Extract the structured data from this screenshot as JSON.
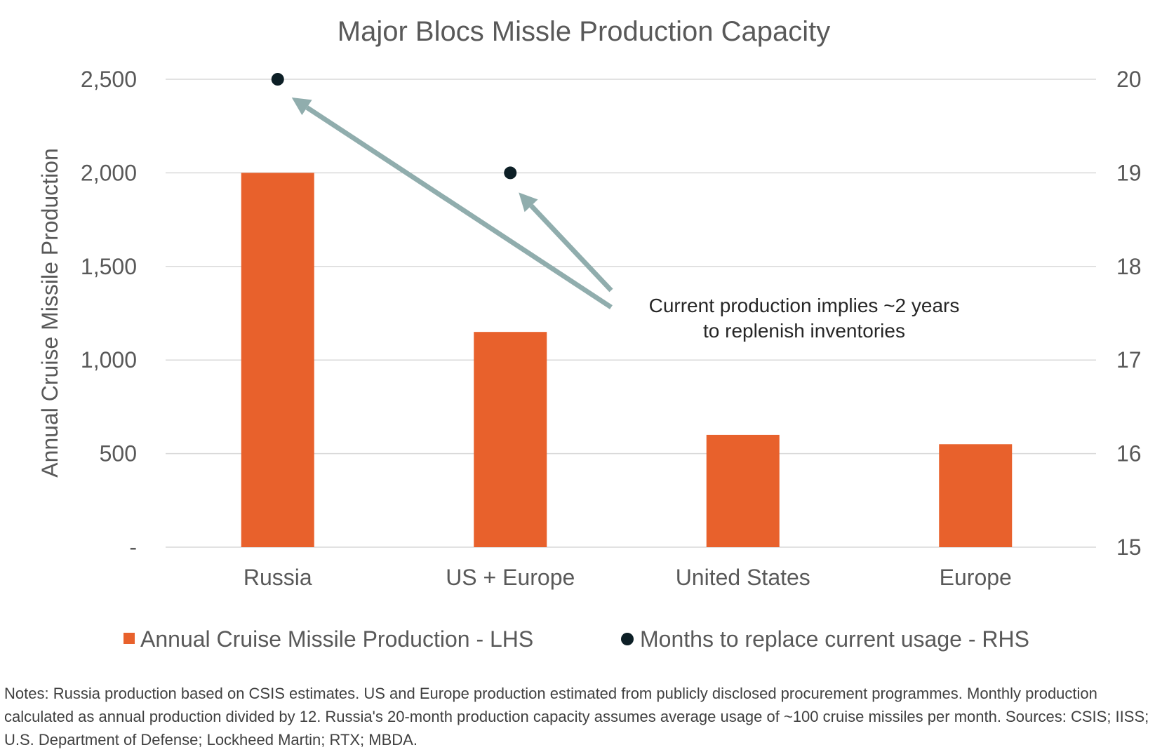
{
  "chart_data": {
    "type": "bar",
    "title": "Major Blocs Missle Production Capacity",
    "categories": [
      "Russia",
      "US + Europe",
      "United States",
      "Europe"
    ],
    "series": [
      {
        "name": "Annual Cruise Missile Production - LHS",
        "axis": "left",
        "kind": "bar",
        "values": [
          2000,
          1150,
          600,
          550
        ],
        "color": "#e8612c"
      },
      {
        "name": "Months to replace current usage - RHS",
        "axis": "right",
        "kind": "scatter",
        "values": [
          20,
          19,
          null,
          null
        ],
        "color": "#0d1f26"
      }
    ],
    "ylabel": "Annual Cruise Missile Production",
    "ylim": [
      0,
      2500
    ],
    "y_ticks": [
      0,
      500,
      1000,
      1500,
      2000,
      2500
    ],
    "y_tick_labels": [
      "-",
      "500",
      "1,000",
      "1,500",
      "2,000",
      "2,500"
    ],
    "y2lim": [
      15,
      20
    ],
    "y2_ticks": [
      15,
      16,
      17,
      18,
      19,
      20
    ],
    "y2_tick_labels": [
      "15",
      "16",
      "17",
      "18",
      "19",
      "20"
    ],
    "grid": true,
    "legend_position": "bottom",
    "annotation": {
      "lines": [
        "Current production implies ~2 years",
        "to replenish inventories"
      ],
      "arrow_color": "#90adad"
    }
  },
  "notes": "Notes: Russia production based on CSIS estimates. US and Europe production estimated from publicly disclosed procurement programmes. Monthly production calculated as annual production divided by 12. Russia's 20-month production capacity assumes average usage of ~100 cruise missiles per month. Sources: CSIS; IISS; U.S. Department of Defense; Lockheed Martin; RTX; MBDA."
}
